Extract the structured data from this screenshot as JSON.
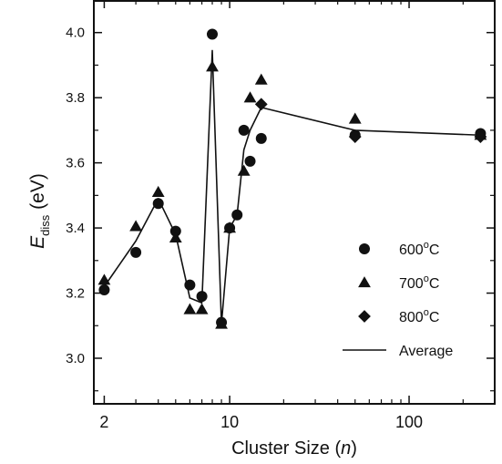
{
  "chart_data": {
    "type": "scatter",
    "x_axis": {
      "label": "Cluster Size",
      "label_var": "n",
      "scale": "log",
      "range": [
        1.75,
        300
      ],
      "tick_labels": [
        {
          "value": 2,
          "label": "2"
        },
        {
          "value": 10,
          "label": "10"
        },
        {
          "value": 100,
          "label": "100"
        }
      ],
      "minor_ticks": [
        3,
        4,
        5,
        6,
        7,
        8,
        9,
        20,
        30,
        40,
        50,
        60,
        70,
        80,
        90,
        200,
        300
      ]
    },
    "y_axis": {
      "label_main": "E",
      "label_sub": "diss",
      "label_unit": "(eV)",
      "range": [
        2.86,
        4.1
      ],
      "tick_labels": [
        {
          "value": 3.0,
          "label": "3.0"
        },
        {
          "value": 3.2,
          "label": "3.2"
        },
        {
          "value": 3.4,
          "label": "3.4"
        },
        {
          "value": 3.6,
          "label": "3.6"
        },
        {
          "value": 3.8,
          "label": "3.8"
        },
        {
          "value": 4.0,
          "label": "4.0"
        }
      ],
      "minor_step": 0.1
    },
    "grid": false,
    "legend_position": "lower-right",
    "series": [
      {
        "name": "600°C",
        "name_base": "600",
        "name_sup": "o",
        "name_tail": "C",
        "marker": "circle",
        "points": [
          {
            "x": 2,
            "y": 3.21
          },
          {
            "x": 3,
            "y": 3.325
          },
          {
            "x": 4,
            "y": 3.475
          },
          {
            "x": 5,
            "y": 3.39
          },
          {
            "x": 6,
            "y": 3.225
          },
          {
            "x": 7,
            "y": 3.19
          },
          {
            "x": 8,
            "y": 3.995
          },
          {
            "x": 9,
            "y": 3.11
          },
          {
            "x": 10,
            "y": 3.4
          },
          {
            "x": 11,
            "y": 3.44
          },
          {
            "x": 12,
            "y": 3.7
          },
          {
            "x": 13,
            "y": 3.605
          },
          {
            "x": 15,
            "y": 3.675
          },
          {
            "x": 50,
            "y": 3.685
          },
          {
            "x": 250,
            "y": 3.69
          }
        ]
      },
      {
        "name": "700°C",
        "name_base": "700",
        "name_sup": "o",
        "name_tail": "C",
        "marker": "triangle",
        "points": [
          {
            "x": 2,
            "y": 3.24
          },
          {
            "x": 3,
            "y": 3.405
          },
          {
            "x": 4,
            "y": 3.51
          },
          {
            "x": 5,
            "y": 3.37
          },
          {
            "x": 6,
            "y": 3.15
          },
          {
            "x": 7,
            "y": 3.15
          },
          {
            "x": 8,
            "y": 3.895
          },
          {
            "x": 9,
            "y": 3.105
          },
          {
            "x": 10,
            "y": 3.4
          },
          {
            "x": 12,
            "y": 3.575
          },
          {
            "x": 13,
            "y": 3.8
          },
          {
            "x": 15,
            "y": 3.855
          },
          {
            "x": 50,
            "y": 3.735
          },
          {
            "x": 250,
            "y": 3.685
          }
        ]
      },
      {
        "name": "800°C",
        "name_base": "800",
        "name_sup": "o",
        "name_tail": "C",
        "marker": "diamond",
        "points": [
          {
            "x": 15,
            "y": 3.78
          },
          {
            "x": 50,
            "y": 3.68
          },
          {
            "x": 250,
            "y": 3.68
          }
        ]
      },
      {
        "name": "Average",
        "marker": "line",
        "points": [
          {
            "x": 2,
            "y": 3.22
          },
          {
            "x": 3,
            "y": 3.36
          },
          {
            "x": 4,
            "y": 3.49
          },
          {
            "x": 5,
            "y": 3.38
          },
          {
            "x": 6,
            "y": 3.185
          },
          {
            "x": 7,
            "y": 3.17
          },
          {
            "x": 8,
            "y": 3.945
          },
          {
            "x": 9,
            "y": 3.105
          },
          {
            "x": 10,
            "y": 3.4
          },
          {
            "x": 11,
            "y": 3.44
          },
          {
            "x": 12,
            "y": 3.64
          },
          {
            "x": 13,
            "y": 3.7
          },
          {
            "x": 15,
            "y": 3.77
          },
          {
            "x": 50,
            "y": 3.7
          },
          {
            "x": 250,
            "y": 3.685
          }
        ]
      }
    ]
  }
}
